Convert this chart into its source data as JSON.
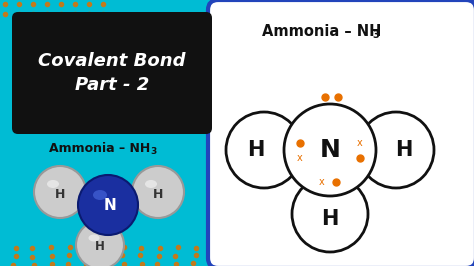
{
  "fig_w": 4.74,
  "fig_h": 2.66,
  "dpi": 100,
  "bg_yellow": "#f5a623",
  "bg_cyan": "#00bcd4",
  "bg_blue": "#2255cc",
  "title_box_color": "#111111",
  "title_text": "Covalent Bond\nPart - 2",
  "title_text_color": "#ffffff",
  "subtitle_text": "Ammonia – NH",
  "subtitle_sub": "3",
  "subtitle_color": "#111111",
  "right_panel_bg": "#f5f5f5",
  "right_panel_border": "#2255cc",
  "right_title": "Ammonia – NH",
  "right_title_sub": "3",
  "right_title_color": "#111111",
  "bond_dot_color": "#e87000",
  "circle_color": "#111111",
  "atom_label_color": "#111111",
  "cyan_accent": "#00e5ff",
  "N_sphere_color": "#1a2fa0",
  "H_sphere_color": "#cccccc",
  "H_sphere_edge": "#999999",
  "H_sphere_shine": "#eeeeee"
}
